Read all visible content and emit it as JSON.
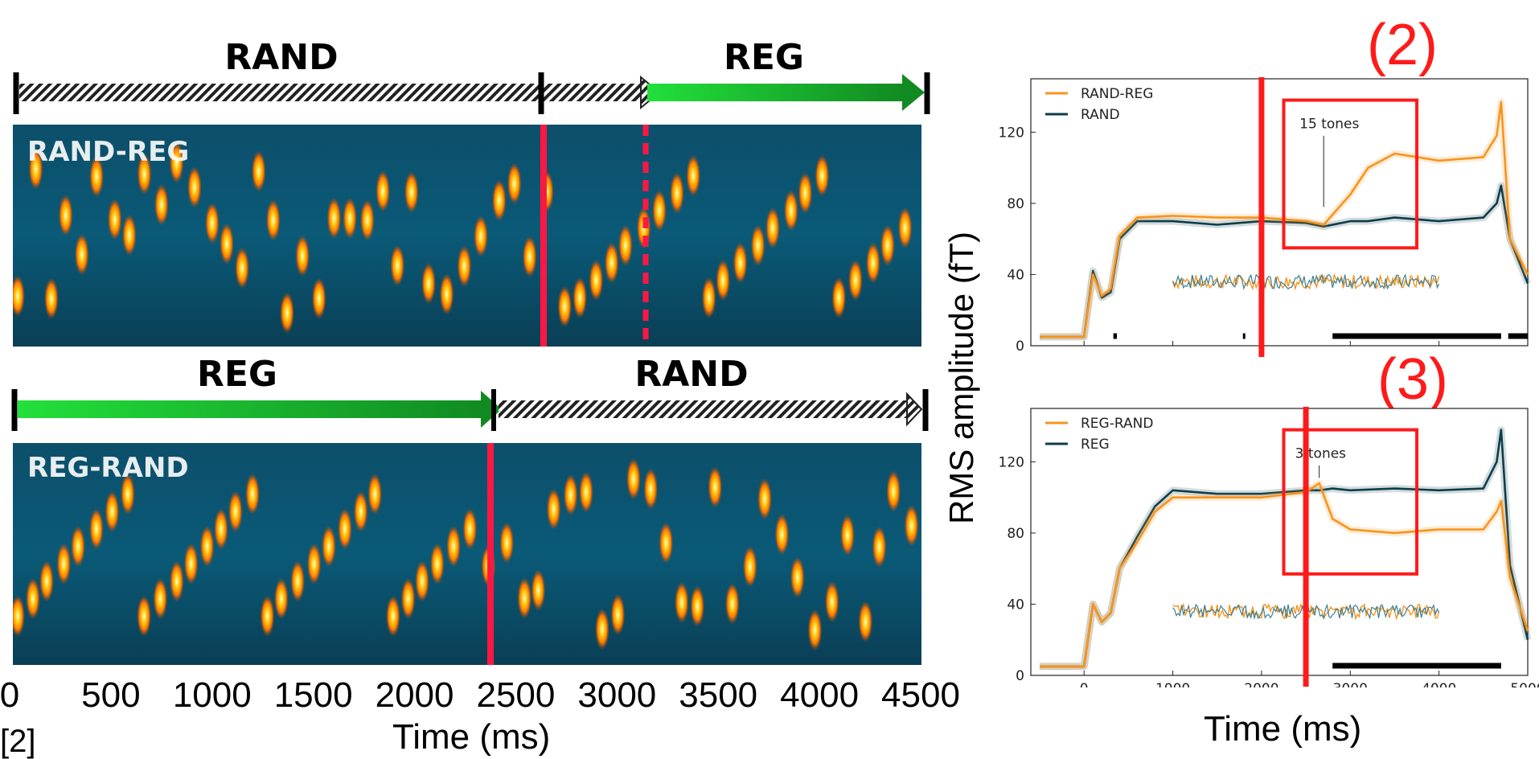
{
  "left": {
    "rand_reg": {
      "label_left": "RAND",
      "label_right": "REG",
      "tag": "RAND-REG"
    },
    "reg_rand": {
      "label_left": "REG",
      "label_right": "RAND",
      "tag": "REG-RAND"
    },
    "x_ticks": [
      "0",
      "500",
      "1000",
      "1500",
      "2000",
      "2500",
      "3000",
      "3500",
      "4000",
      "4500"
    ],
    "xlabel": "Time (ms)",
    "reference": "[2]",
    "colors": {
      "transition_line": "#ff1744",
      "reg_arrow": "#1aa32a",
      "spectrogram_bg": "#0b4a63"
    }
  },
  "right": {
    "panel2_tag": "(2)",
    "panel3_tag": "(3)",
    "ylabel": "RMS amplitude (fT)",
    "xlabel": "Time (ms)",
    "colors": {
      "orange": "#f7941d",
      "dark": "#0d3d4a",
      "highlight": "#ff1a1a"
    }
  },
  "chart_data": [
    {
      "type": "line",
      "title": "",
      "ylabel": "RMS amplitude (fT)",
      "xlabel": "Time (ms)",
      "xlim": [
        -600,
        5000
      ],
      "ylim": [
        0,
        150
      ],
      "x_ticks": [
        0,
        1000,
        2000,
        3000,
        4000,
        5000
      ],
      "y_ticks": [
        0,
        40,
        80,
        120
      ],
      "legend": "top-left",
      "annotation": "15 tones",
      "annotation_x": 2700,
      "transition_ms": 2000,
      "highlight_box": {
        "x": [
          2250,
          3750
        ],
        "y": [
          55,
          138
        ]
      },
      "significance_bars": [
        [
          330,
          370
        ],
        [
          1790,
          1810
        ],
        [
          2800,
          4700
        ],
        [
          4780,
          5000
        ]
      ],
      "x": [
        -500,
        0,
        100,
        200,
        300,
        400,
        600,
        1000,
        1500,
        2000,
        2500,
        2700,
        3000,
        3200,
        3500,
        4000,
        4500,
        4650,
        4700,
        4800,
        5000
      ],
      "series": [
        {
          "name": "RAND-REG",
          "color": "#f7941d",
          "values": [
            5,
            5,
            40,
            28,
            32,
            62,
            72,
            73,
            72,
            72,
            70,
            68,
            85,
            100,
            108,
            104,
            106,
            118,
            137,
            60,
            40
          ]
        },
        {
          "name": "RAND",
          "color": "#0d3d4a",
          "values": [
            5,
            5,
            42,
            27,
            30,
            60,
            70,
            70,
            68,
            70,
            69,
            67,
            70,
            70,
            72,
            70,
            72,
            80,
            90,
            60,
            35
          ]
        }
      ],
      "difference": {
        "x_range": [
          1000,
          4000
        ],
        "level": 36
      }
    },
    {
      "type": "line",
      "title": "",
      "ylabel": "RMS amplitude (fT)",
      "xlabel": "Time (ms)",
      "xlim": [
        -600,
        5000
      ],
      "ylim": [
        0,
        150
      ],
      "x_ticks": [
        0,
        1000,
        2000,
        3000,
        4000,
        5000
      ],
      "y_ticks": [
        0,
        40,
        80,
        120
      ],
      "legend": "top-left",
      "annotation": "3 tones",
      "annotation_x": 2650,
      "transition_ms": 2500,
      "highlight_box": {
        "x": [
          2250,
          3750
        ],
        "y": [
          57,
          138
        ]
      },
      "significance_bars": [
        [
          2800,
          4700
        ]
      ],
      "x": [
        -500,
        0,
        100,
        200,
        300,
        400,
        600,
        800,
        1000,
        1500,
        2000,
        2500,
        2650,
        2800,
        3000,
        3500,
        4000,
        4500,
        4650,
        4700,
        4800,
        5000
      ],
      "series": [
        {
          "name": "REG-RAND",
          "color": "#f7941d",
          "values": [
            5,
            5,
            40,
            30,
            35,
            60,
            75,
            92,
            100,
            100,
            100,
            103,
            108,
            88,
            82,
            80,
            82,
            82,
            92,
            98,
            55,
            25
          ]
        },
        {
          "name": "REG",
          "color": "#0d3d4a",
          "values": [
            5,
            5,
            40,
            30,
            35,
            60,
            78,
            95,
            104,
            102,
            102,
            104,
            104,
            105,
            104,
            105,
            104,
            105,
            120,
            138,
            62,
            20
          ]
        }
      ],
      "difference": {
        "x_range": [
          1000,
          4000
        ],
        "level": 36
      }
    }
  ]
}
